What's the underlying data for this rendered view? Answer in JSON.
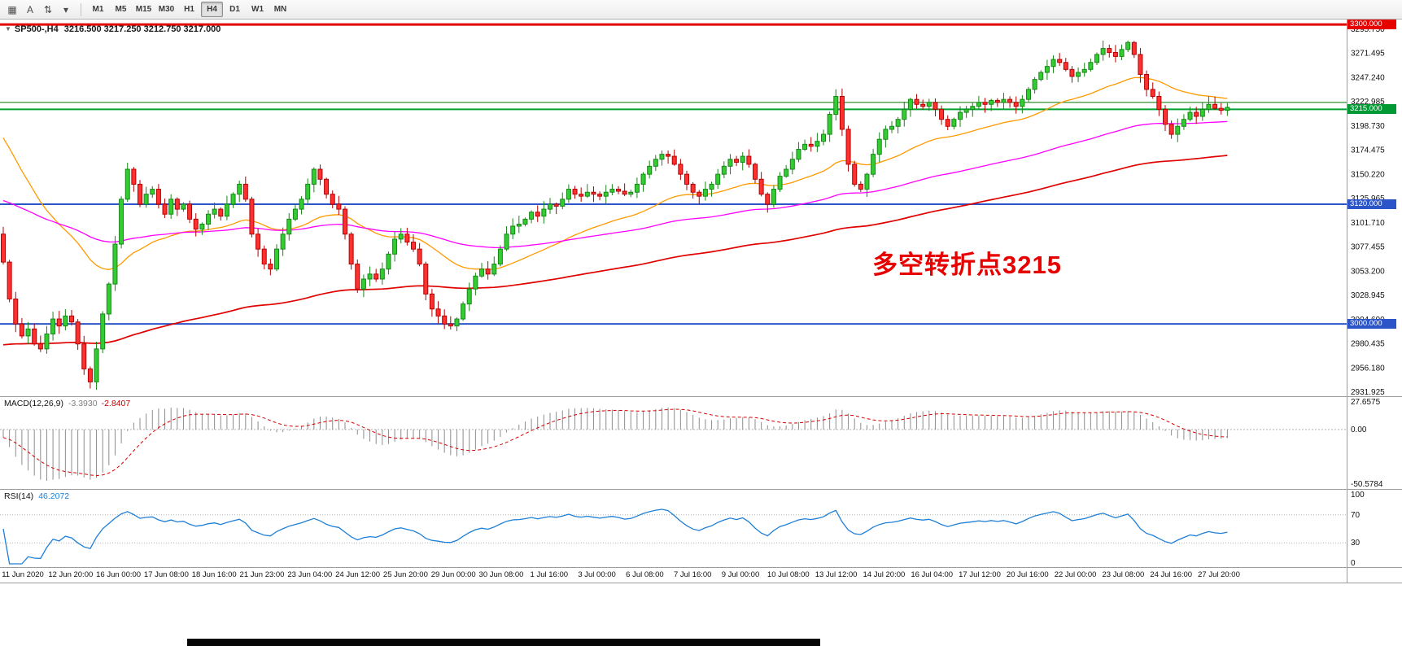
{
  "toolbar": {
    "icons": [
      {
        "name": "chart-window-icon",
        "glyph": "▦"
      },
      {
        "name": "text-tool-icon",
        "glyph": "A"
      },
      {
        "name": "scale-tool-icon",
        "glyph": "⇅"
      },
      {
        "name": "dropdown-caret-icon",
        "glyph": "▾"
      }
    ],
    "timeframes": [
      "M1",
      "M5",
      "M15",
      "M30",
      "H1",
      "H4",
      "D1",
      "W1",
      "MN"
    ],
    "active_timeframe": "H4"
  },
  "chart": {
    "symbol_label": "SP500-,H4",
    "ohlc": "3216.500 3217.250 3212.750 3217.000",
    "annotation": "多空转折点3215",
    "annotation_color": "#e60000",
    "hlines": [
      {
        "price": 3300,
        "color": "#E00000",
        "width": 3
      },
      {
        "price": 3222,
        "color": "#007800",
        "width": 1
      },
      {
        "price": 3215,
        "color": "#00A032",
        "width": 2
      },
      {
        "price": 3120,
        "color": "#2B54C8",
        "width": 2
      },
      {
        "price": 3000,
        "color": "#2B54C8",
        "width": 2
      }
    ],
    "price_tags": [
      {
        "value": "3300.000",
        "color": "#E60000"
      },
      {
        "value": "3215.000",
        "color": "#009933"
      },
      {
        "value": "3120.000",
        "color": "#2B54C8"
      },
      {
        "value": "3000.000",
        "color": "#2B54C8"
      }
    ],
    "y_tick_labels": [
      "3295.750",
      "3271.495",
      "3247.240",
      "3222.985",
      "3198.730",
      "3174.475",
      "3150.220",
      "3125.965",
      "3101.710",
      "3077.455",
      "3053.200",
      "3028.945",
      "3004.690",
      "2980.435",
      "2956.180",
      "2931.925"
    ]
  },
  "chart_data": {
    "type": "candlestick",
    "symbol": "SP500-",
    "timeframe": "H4",
    "current_ohlc": {
      "open": 3216.5,
      "high": 3217.25,
      "low": 3212.75,
      "close": 3217.0
    },
    "first_open": 3090,
    "prehistory_level": 3150,
    "closes": [
      3062,
      3025,
      3000,
      2988,
      2995,
      2980,
      2975,
      2990,
      3005,
      2998,
      3008,
      3002,
      2980,
      2955,
      2942,
      2975,
      3010,
      3040,
      3080,
      3125,
      3155,
      3140,
      3120,
      3130,
      3135,
      3120,
      3110,
      3125,
      3115,
      3120,
      3105,
      3095,
      3100,
      3110,
      3115,
      3108,
      3120,
      3130,
      3140,
      3125,
      3090,
      3075,
      3060,
      3055,
      3075,
      3090,
      3105,
      3115,
      3125,
      3140,
      3155,
      3145,
      3130,
      3120,
      3115,
      3090,
      3060,
      3035,
      3045,
      3050,
      3045,
      3055,
      3070,
      3085,
      3090,
      3082,
      3075,
      3060,
      3030,
      3015,
      3008,
      3000,
      2998,
      3005,
      3020,
      3035,
      3048,
      3055,
      3050,
      3060,
      3075,
      3090,
      3098,
      3100,
      3105,
      3112,
      3108,
      3115,
      3120,
      3118,
      3125,
      3135,
      3130,
      3128,
      3132,
      3130,
      3128,
      3132,
      3135,
      3133,
      3130,
      3132,
      3140,
      3150,
      3158,
      3165,
      3170,
      3168,
      3160,
      3150,
      3140,
      3132,
      3128,
      3135,
      3140,
      3150,
      3158,
      3165,
      3162,
      3168,
      3160,
      3145,
      3130,
      3120,
      3135,
      3148,
      3155,
      3165,
      3175,
      3180,
      3178,
      3183,
      3190,
      3210,
      3228,
      3195,
      3160,
      3140,
      3135,
      3150,
      3170,
      3185,
      3195,
      3198,
      3205,
      3215,
      3225,
      3220,
      3218,
      3222,
      3215,
      3205,
      3198,
      3205,
      3212,
      3215,
      3218,
      3222,
      3220,
      3224,
      3222,
      3225,
      3222,
      3218,
      3225,
      3235,
      3245,
      3252,
      3258,
      3265,
      3262,
      3255,
      3248,
      3252,
      3255,
      3262,
      3270,
      3276,
      3272,
      3268,
      3275,
      3282,
      3270,
      3250,
      3235,
      3228,
      3215,
      3200,
      3190,
      3198,
      3205,
      3212,
      3208,
      3215,
      3220,
      3216,
      3214,
      3217
    ],
    "x_labels": [
      "11 Jun 2020",
      "12 Jun 20:00",
      "16 Jun 00:00",
      "17 Jun 08:00",
      "18 Jun 16:00",
      "21 Jun 23:00",
      "23 Jun 04:00",
      "24 Jun 12:00",
      "25 Jun 20:00",
      "29 Jun 00:00",
      "30 Jun 08:00",
      "1 Jul 16:00",
      "3 Jul 00:00",
      "6 Jul 08:00",
      "7 Jul 16:00",
      "9 Jul 00:00",
      "10 Jul 08:00",
      "13 Jul 12:00",
      "14 Jul 20:00",
      "16 Jul 04:00",
      "17 Jul 12:00",
      "20 Jul 16:00",
      "22 Jul 00:00",
      "23 Jul 08:00",
      "24 Jul 16:00",
      "27 Jul 20:00"
    ],
    "y_axis": {
      "top_price": 3305,
      "bottom_price": 2927.6,
      "tick_step": 24.255
    },
    "colors": {
      "up": "#33CC33",
      "up_edge": "#178717",
      "down": "#FF3030",
      "down_edge": "#B40000"
    },
    "ma_lines": [
      {
        "name": "fast",
        "period": 30,
        "seed": 3195,
        "color": "#FF9900",
        "width": 1.3
      },
      {
        "name": "mid",
        "period": 90,
        "seed": 3125,
        "color": "#FF00FF",
        "width": 1.3
      },
      {
        "name": "slow",
        "period": 150,
        "seed": 2978,
        "color": "#E00000",
        "width": 1.7
      }
    ]
  },
  "macd_panel": {
    "label": "MACD(12,26,9)",
    "value_main": "-3.3930",
    "value_signal": "-2.8407",
    "axis_labels": [
      "27.6575",
      "0.00",
      "-50.5784"
    ],
    "range": {
      "max": 27.6575,
      "min": -50.5784
    },
    "params": {
      "fast": 12,
      "slow": 26,
      "signal": 9
    },
    "histogram_color": "#8c8c8c",
    "signal_color": "#D40000"
  },
  "rsi_panel": {
    "label": "RSI(14)",
    "value": "46.2072",
    "period": 14,
    "axis_labels": [
      "100",
      "70",
      "30",
      "0"
    ],
    "levels": [
      70,
      30
    ],
    "line_color": "#1E7FD6"
  }
}
